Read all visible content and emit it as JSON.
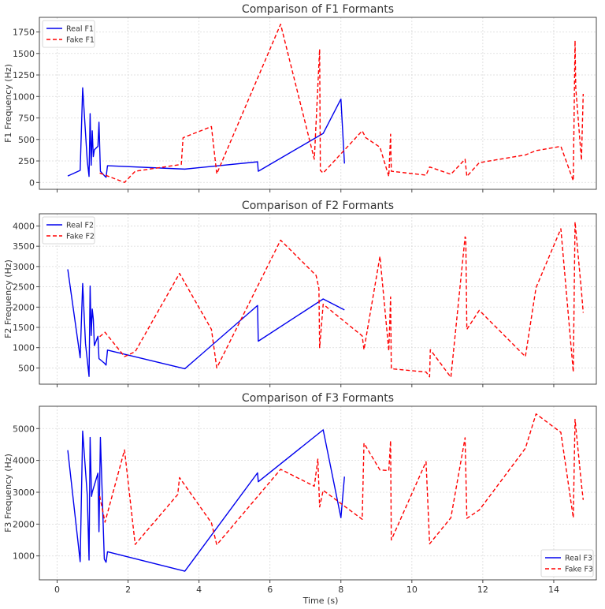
{
  "chart_data": [
    {
      "type": "line",
      "title": "Comparison of F1 Formants",
      "xlabel": "",
      "ylabel": "F1 Frequency (Hz)",
      "xlim": [
        -0.5,
        15.2
      ],
      "ylim": [
        -80,
        1920
      ],
      "yticks": [
        0,
        250,
        500,
        750,
        1000,
        1250,
        1500,
        1750
      ],
      "xticks": [
        0,
        2,
        4,
        6,
        8,
        10,
        12,
        14
      ],
      "show_xtick_labels": false,
      "grid": true,
      "legend_position": "top-left",
      "series": [
        {
          "name": "Real F1",
          "color": "#0000ee",
          "dash": "solid",
          "points": [
            [
              0.3,
              75
            ],
            [
              0.65,
              140
            ],
            [
              0.72,
              1100
            ],
            [
              0.85,
              250
            ],
            [
              0.9,
              70
            ],
            [
              0.93,
              800
            ],
            [
              0.96,
              200
            ],
            [
              0.99,
              600
            ],
            [
              1.02,
              300
            ],
            [
              1.05,
              380
            ],
            [
              1.15,
              420
            ],
            [
              1.18,
              700
            ],
            [
              1.22,
              130
            ],
            [
              1.33,
              80
            ],
            [
              1.38,
              60
            ],
            [
              1.42,
              195
            ],
            [
              3.6,
              155
            ],
            [
              5.65,
              240
            ],
            [
              5.67,
              130
            ],
            [
              7.5,
              570
            ],
            [
              8.0,
              970
            ],
            [
              8.1,
              220
            ]
          ]
        },
        {
          "name": "Fake F1",
          "color": "#ff0000",
          "dash": "dashed",
          "points": [
            [
              1.2,
              110
            ],
            [
              1.9,
              0
            ],
            [
              2.2,
              130
            ],
            [
              3.5,
              210
            ],
            [
              3.55,
              520
            ],
            [
              4.35,
              650
            ],
            [
              4.5,
              100
            ],
            [
              6.3,
              1840
            ],
            [
              7.25,
              270
            ],
            [
              7.4,
              1550
            ],
            [
              7.42,
              140
            ],
            [
              7.5,
              110
            ],
            [
              8.6,
              600
            ],
            [
              8.7,
              520
            ],
            [
              9.1,
              410
            ],
            [
              9.35,
              70
            ],
            [
              9.4,
              560
            ],
            [
              9.42,
              130
            ],
            [
              10.4,
              85
            ],
            [
              10.5,
              180
            ],
            [
              11.1,
              95
            ],
            [
              11.5,
              270
            ],
            [
              11.55,
              70
            ],
            [
              11.9,
              230
            ],
            [
              13.2,
              320
            ],
            [
              13.5,
              370
            ],
            [
              14.2,
              420
            ],
            [
              14.55,
              20
            ],
            [
              14.6,
              1650
            ],
            [
              14.62,
              1100
            ],
            [
              14.78,
              260
            ],
            [
              14.83,
              1030
            ]
          ]
        }
      ]
    },
    {
      "type": "line",
      "title": "Comparison of F2 Formants",
      "xlabel": "",
      "ylabel": "F2 Frequency (Hz)",
      "xlim": [
        -0.5,
        15.2
      ],
      "ylim": [
        100,
        4300
      ],
      "yticks": [
        500,
        1000,
        1500,
        2000,
        2500,
        3000,
        3500,
        4000
      ],
      "xticks": [
        0,
        2,
        4,
        6,
        8,
        10,
        12,
        14
      ],
      "show_xtick_labels": false,
      "grid": true,
      "legend_position": "top-left",
      "series": [
        {
          "name": "Real F2",
          "color": "#0000ee",
          "dash": "solid",
          "points": [
            [
              0.3,
              2930
            ],
            [
              0.65,
              750
            ],
            [
              0.72,
              2580
            ],
            [
              0.8,
              1100
            ],
            [
              0.9,
              290
            ],
            [
              0.93,
              2520
            ],
            [
              0.96,
              1300
            ],
            [
              0.99,
              1950
            ],
            [
              1.02,
              1700
            ],
            [
              1.05,
              1050
            ],
            [
              1.15,
              1280
            ],
            [
              1.18,
              730
            ],
            [
              1.33,
              620
            ],
            [
              1.38,
              570
            ],
            [
              1.42,
              940
            ],
            [
              3.6,
              480
            ],
            [
              5.65,
              2040
            ],
            [
              5.67,
              1160
            ],
            [
              7.5,
              2200
            ],
            [
              8.1,
              1930
            ]
          ]
        },
        {
          "name": "Fake F2",
          "color": "#ff0000",
          "dash": "dashed",
          "points": [
            [
              1.2,
              1270
            ],
            [
              1.35,
              1380
            ],
            [
              1.9,
              780
            ],
            [
              2.2,
              900
            ],
            [
              3.45,
              2830
            ],
            [
              4.35,
              1450
            ],
            [
              4.5,
              500
            ],
            [
              6.3,
              3650
            ],
            [
              7.3,
              2780
            ],
            [
              7.38,
              2460
            ],
            [
              7.4,
              1000
            ],
            [
              7.5,
              2070
            ],
            [
              8.6,
              1290
            ],
            [
              8.65,
              950
            ],
            [
              9.1,
              3250
            ],
            [
              9.35,
              920
            ],
            [
              9.4,
              2250
            ],
            [
              9.42,
              480
            ],
            [
              10.4,
              400
            ],
            [
              10.5,
              280
            ],
            [
              10.52,
              950
            ],
            [
              11.1,
              270
            ],
            [
              11.5,
              3730
            ],
            [
              11.52,
              3700
            ],
            [
              11.55,
              1450
            ],
            [
              11.9,
              1920
            ],
            [
              13.2,
              780
            ],
            [
              13.5,
              2480
            ],
            [
              14.2,
              3930
            ],
            [
              14.55,
              400
            ],
            [
              14.6,
              4100
            ],
            [
              14.78,
              2400
            ],
            [
              14.83,
              1860
            ]
          ]
        }
      ]
    },
    {
      "type": "line",
      "title": "Comparison of F3 Formants",
      "xlabel": "Time (s)",
      "ylabel": "F3 Frequency (Hz)",
      "xlim": [
        -0.5,
        15.2
      ],
      "ylim": [
        250,
        5700
      ],
      "yticks": [
        1000,
        2000,
        3000,
        4000,
        5000
      ],
      "xticks": [
        0,
        2,
        4,
        6,
        8,
        10,
        12,
        14
      ],
      "show_xtick_labels": true,
      "grid": true,
      "legend_position": "bottom-right",
      "series": [
        {
          "name": "Real F3",
          "color": "#0000ee",
          "dash": "solid",
          "points": [
            [
              0.3,
              4320
            ],
            [
              0.65,
              820
            ],
            [
              0.72,
              4920
            ],
            [
              0.85,
              2900
            ],
            [
              0.9,
              870
            ],
            [
              0.93,
              4720
            ],
            [
              0.97,
              2870
            ],
            [
              0.99,
              3000
            ],
            [
              1.15,
              3600
            ],
            [
              1.18,
              1760
            ],
            [
              1.22,
              4720
            ],
            [
              1.33,
              900
            ],
            [
              1.38,
              800
            ],
            [
              1.42,
              1130
            ],
            [
              3.6,
              520
            ],
            [
              5.65,
              3610
            ],
            [
              5.67,
              3330
            ],
            [
              7.5,
              4960
            ],
            [
              8.0,
              2200
            ],
            [
              8.1,
              3490
            ]
          ]
        },
        {
          "name": "Fake F3",
          "color": "#ff0000",
          "dash": "dashed",
          "points": [
            [
              1.2,
              2880
            ],
            [
              1.35,
              2060
            ],
            [
              1.9,
              4330
            ],
            [
              2.2,
              1360
            ],
            [
              3.4,
              2930
            ],
            [
              3.45,
              3460
            ],
            [
              4.35,
              2040
            ],
            [
              4.5,
              1350
            ],
            [
              6.3,
              3720
            ],
            [
              7.25,
              3190
            ],
            [
              7.35,
              4040
            ],
            [
              7.4,
              2540
            ],
            [
              7.5,
              3060
            ],
            [
              8.6,
              2150
            ],
            [
              8.65,
              4540
            ],
            [
              9.1,
              3700
            ],
            [
              9.35,
              3680
            ],
            [
              9.4,
              4620
            ],
            [
              9.42,
              1500
            ],
            [
              10.4,
              3960
            ],
            [
              10.5,
              1380
            ],
            [
              11.1,
              2200
            ],
            [
              11.5,
              4710
            ],
            [
              11.55,
              2180
            ],
            [
              11.9,
              2440
            ],
            [
              13.2,
              4380
            ],
            [
              13.5,
              5460
            ],
            [
              14.2,
              4880
            ],
            [
              14.55,
              2200
            ],
            [
              14.6,
              5290
            ],
            [
              14.78,
              3250
            ],
            [
              14.83,
              2760
            ]
          ]
        }
      ]
    }
  ]
}
